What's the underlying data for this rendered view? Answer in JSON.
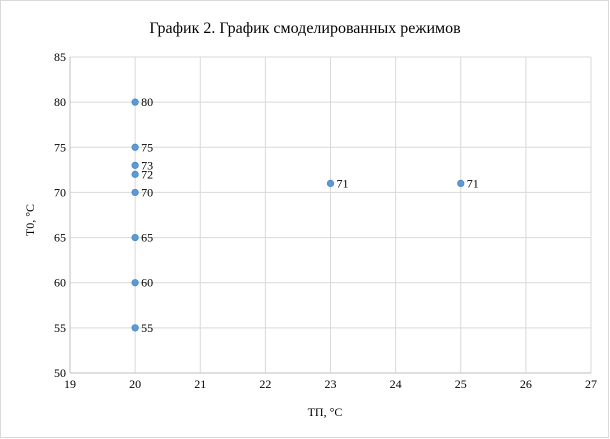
{
  "chart_data": {
    "type": "scatter",
    "title": "График 2. График смоделированных режимов",
    "xlabel": "ТП, °С",
    "ylabel": "Т0, °С",
    "xlim": [
      19,
      27
    ],
    "ylim": [
      50,
      85
    ],
    "xticks": [
      19,
      20,
      21,
      22,
      23,
      24,
      25,
      26,
      27
    ],
    "yticks": [
      50,
      55,
      60,
      65,
      70,
      75,
      80,
      85
    ],
    "grid": true,
    "legend": "none",
    "marker_color": "#5b9bd5",
    "points": [
      {
        "x": 20,
        "y": 80,
        "label": "80"
      },
      {
        "x": 20,
        "y": 75,
        "label": "75"
      },
      {
        "x": 20,
        "y": 73,
        "label": "73"
      },
      {
        "x": 20,
        "y": 72,
        "label": "72"
      },
      {
        "x": 20,
        "y": 70,
        "label": "70"
      },
      {
        "x": 20,
        "y": 65,
        "label": "65"
      },
      {
        "x": 20,
        "y": 60,
        "label": "60"
      },
      {
        "x": 20,
        "y": 55,
        "label": "55"
      },
      {
        "x": 23,
        "y": 71,
        "label": "71"
      },
      {
        "x": 25,
        "y": 71,
        "label": "71"
      }
    ]
  }
}
